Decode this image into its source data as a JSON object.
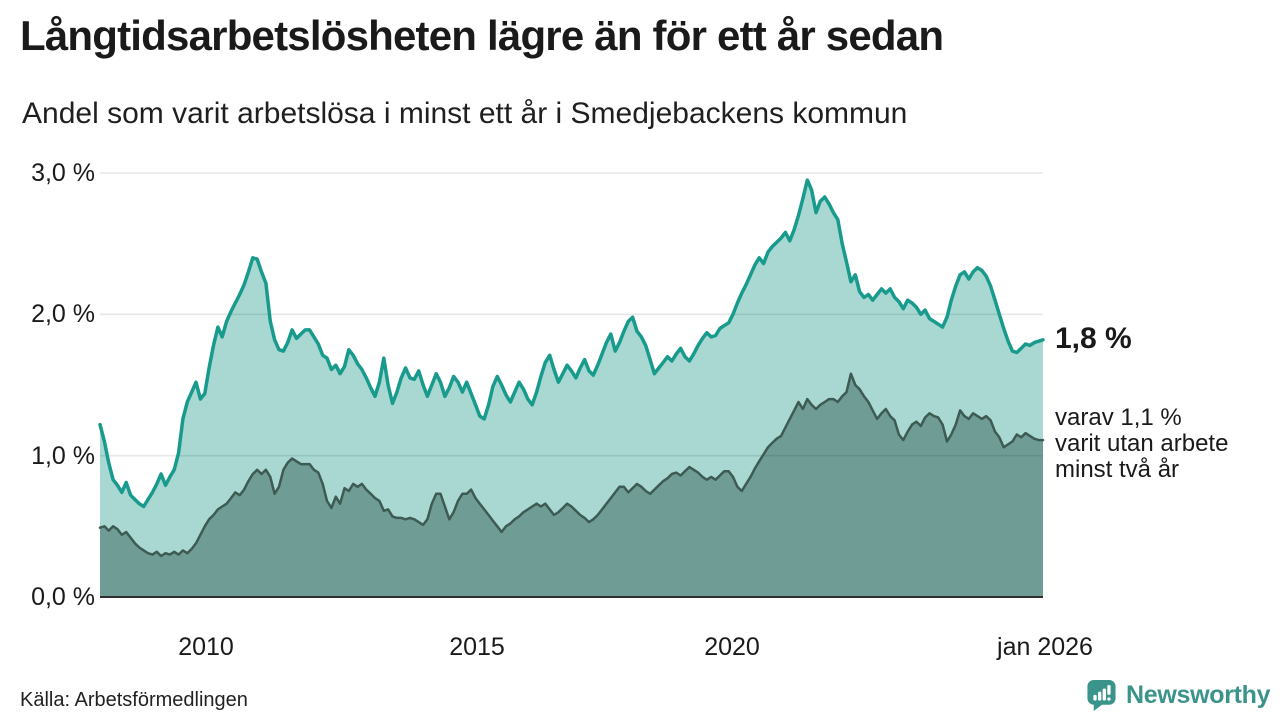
{
  "header": {
    "title": "Långtidsarbetslösheten lägre än för ett år sedan",
    "subtitle": "Andel som varit arbetslösa i minst ett år i Smedjebackens kommun"
  },
  "chart_data": {
    "type": "area",
    "title": "Långtidsarbetslösheten lägre än för ett år sedan",
    "subtitle": "Andel som varit arbetslösa i minst ett år i Smedjebackens kommun",
    "unit": "%",
    "x_start_year": 2008,
    "x_end_year": 2026,
    "interval_months": 1,
    "ylim": [
      0,
      3.0
    ],
    "grid": true,
    "ytick_labels": [
      "3,0 %",
      "2,0 %",
      "1,0 %",
      "0,0 %"
    ],
    "ytick_values": [
      3.0,
      2.0,
      1.0,
      0.0
    ],
    "xticks": [
      {
        "x": 2010,
        "label": "2010"
      },
      {
        "x": 2015,
        "label": "2015"
      },
      {
        "x": 2020,
        "label": "2020"
      },
      {
        "x": 2026,
        "label": "jan 2026"
      }
    ],
    "series": [
      {
        "name": "Arbetslösa minst ett år",
        "line_color": "#189a8d",
        "fill_color": "#a9d8d2",
        "line_width": 3.5,
        "last_value": 1.8,
        "values": [
          1.22,
          1.1,
          0.95,
          0.83,
          0.79,
          0.74,
          0.81,
          0.72,
          0.69,
          0.66,
          0.64,
          0.69,
          0.74,
          0.8,
          0.87,
          0.79,
          0.85,
          0.9,
          1.02,
          1.26,
          1.38,
          1.45,
          1.52,
          1.4,
          1.44,
          1.62,
          1.78,
          1.91,
          1.84,
          1.95,
          2.02,
          2.08,
          2.14,
          2.21,
          2.3,
          2.4,
          2.39,
          2.3,
          2.22,
          1.95,
          1.82,
          1.75,
          1.74,
          1.8,
          1.89,
          1.83,
          1.86,
          1.89,
          1.89,
          1.84,
          1.79,
          1.71,
          1.69,
          1.61,
          1.64,
          1.58,
          1.63,
          1.75,
          1.71,
          1.65,
          1.61,
          1.55,
          1.48,
          1.42,
          1.52,
          1.69,
          1.5,
          1.37,
          1.45,
          1.55,
          1.62,
          1.55,
          1.54,
          1.6,
          1.5,
          1.42,
          1.5,
          1.58,
          1.52,
          1.42,
          1.48,
          1.56,
          1.52,
          1.45,
          1.52,
          1.44,
          1.36,
          1.28,
          1.26,
          1.36,
          1.49,
          1.56,
          1.5,
          1.43,
          1.38,
          1.45,
          1.52,
          1.47,
          1.4,
          1.36,
          1.45,
          1.56,
          1.66,
          1.71,
          1.61,
          1.52,
          1.58,
          1.64,
          1.6,
          1.55,
          1.62,
          1.68,
          1.6,
          1.57,
          1.64,
          1.72,
          1.8,
          1.86,
          1.74,
          1.8,
          1.88,
          1.95,
          1.98,
          1.88,
          1.84,
          1.78,
          1.68,
          1.58,
          1.62,
          1.66,
          1.7,
          1.67,
          1.72,
          1.76,
          1.7,
          1.67,
          1.72,
          1.78,
          1.83,
          1.87,
          1.84,
          1.85,
          1.9,
          1.92,
          1.94,
          2.0,
          2.08,
          2.15,
          2.21,
          2.28,
          2.35,
          2.4,
          2.36,
          2.44,
          2.48,
          2.51,
          2.54,
          2.58,
          2.52,
          2.6,
          2.7,
          2.82,
          2.95,
          2.88,
          2.72,
          2.8,
          2.83,
          2.78,
          2.72,
          2.67,
          2.5,
          2.37,
          2.23,
          2.28,
          2.16,
          2.12,
          2.14,
          2.1,
          2.14,
          2.18,
          2.15,
          2.18,
          2.12,
          2.09,
          2.04,
          2.1,
          2.08,
          2.05,
          2.0,
          2.03,
          1.97,
          1.95,
          1.93,
          1.91,
          1.98,
          2.1,
          2.2,
          2.28,
          2.3,
          2.25,
          2.3,
          2.33,
          2.31,
          2.27,
          2.2,
          2.1,
          2.0,
          1.9,
          1.81,
          1.74,
          1.73,
          1.76,
          1.79,
          1.78,
          1.8,
          1.81,
          1.82
        ]
      },
      {
        "name": "Varav utan arbete minst två år",
        "line_color": "#3d5b53",
        "fill_color": "#6f9d96",
        "line_width": 2.5,
        "last_value": 1.1,
        "values": [
          0.49,
          0.5,
          0.47,
          0.5,
          0.48,
          0.44,
          0.46,
          0.42,
          0.38,
          0.35,
          0.33,
          0.31,
          0.3,
          0.32,
          0.29,
          0.31,
          0.3,
          0.32,
          0.3,
          0.33,
          0.31,
          0.34,
          0.38,
          0.44,
          0.5,
          0.55,
          0.58,
          0.62,
          0.64,
          0.66,
          0.7,
          0.74,
          0.72,
          0.76,
          0.82,
          0.87,
          0.9,
          0.87,
          0.9,
          0.85,
          0.73,
          0.78,
          0.9,
          0.95,
          0.98,
          0.96,
          0.94,
          0.94,
          0.94,
          0.9,
          0.88,
          0.8,
          0.68,
          0.63,
          0.71,
          0.66,
          0.77,
          0.75,
          0.8,
          0.78,
          0.8,
          0.76,
          0.73,
          0.7,
          0.68,
          0.61,
          0.62,
          0.57,
          0.56,
          0.56,
          0.55,
          0.56,
          0.55,
          0.53,
          0.51,
          0.55,
          0.66,
          0.73,
          0.73,
          0.64,
          0.55,
          0.6,
          0.68,
          0.73,
          0.73,
          0.76,
          0.7,
          0.66,
          0.62,
          0.58,
          0.54,
          0.5,
          0.46,
          0.5,
          0.52,
          0.55,
          0.57,
          0.6,
          0.62,
          0.64,
          0.66,
          0.64,
          0.66,
          0.62,
          0.58,
          0.6,
          0.63,
          0.66,
          0.64,
          0.61,
          0.58,
          0.56,
          0.53,
          0.55,
          0.58,
          0.62,
          0.66,
          0.7,
          0.74,
          0.78,
          0.78,
          0.74,
          0.77,
          0.8,
          0.78,
          0.75,
          0.73,
          0.76,
          0.79,
          0.82,
          0.84,
          0.87,
          0.88,
          0.86,
          0.89,
          0.92,
          0.9,
          0.88,
          0.85,
          0.83,
          0.85,
          0.83,
          0.86,
          0.89,
          0.89,
          0.85,
          0.78,
          0.75,
          0.8,
          0.85,
          0.91,
          0.96,
          1.01,
          1.06,
          1.09,
          1.12,
          1.14,
          1.2,
          1.26,
          1.32,
          1.38,
          1.33,
          1.4,
          1.36,
          1.33,
          1.36,
          1.38,
          1.4,
          1.4,
          1.38,
          1.42,
          1.45,
          1.58,
          1.5,
          1.47,
          1.42,
          1.38,
          1.32,
          1.26,
          1.3,
          1.33,
          1.28,
          1.25,
          1.15,
          1.11,
          1.17,
          1.22,
          1.24,
          1.21,
          1.27,
          1.3,
          1.28,
          1.27,
          1.22,
          1.1,
          1.15,
          1.22,
          1.32,
          1.28,
          1.26,
          1.3,
          1.28,
          1.26,
          1.28,
          1.25,
          1.17,
          1.13,
          1.06,
          1.08,
          1.1,
          1.15,
          1.13,
          1.16,
          1.14,
          1.12,
          1.11,
          1.11
        ]
      }
    ],
    "baseline_color": "#2e2e2e",
    "gridline_color": "#e3e3e3"
  },
  "annotations": {
    "end_value_label": "1,8 %",
    "sub_label_lines": [
      "varav 1,1 %",
      "varit utan arbete",
      "minst två år"
    ]
  },
  "footer": {
    "source": "Källa: Arbetsförmedlingen",
    "brand": "Newsworthy"
  },
  "colors": {
    "accent_teal": "#189a8d",
    "light_fill": "#a9d8d2",
    "dark_fill": "#6f9d96",
    "dark_line": "#3d5b53",
    "brand_teal": "#3b948b"
  }
}
